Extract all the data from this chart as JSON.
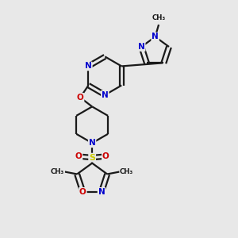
{
  "bg_color": "#e8e8e8",
  "bond_color": "#1a1a1a",
  "nitrogen_color": "#0000cc",
  "oxygen_color": "#cc0000",
  "sulfur_color": "#cccc00",
  "line_width": 1.6,
  "fig_width": 3.0,
  "fig_height": 3.0,
  "dpi": 100,
  "xlim": [
    0,
    10
  ],
  "ylim": [
    0,
    10
  ]
}
